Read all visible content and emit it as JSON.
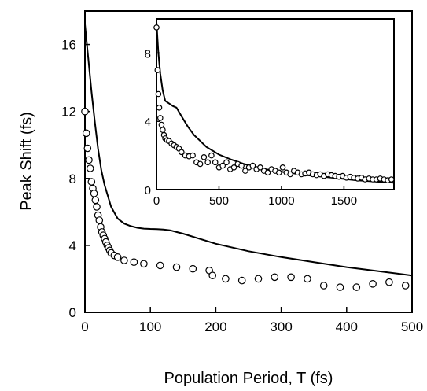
{
  "chart_data": [
    {
      "type": "line+scatter",
      "xlabel": "Population Period, T (fs)",
      "ylabel": "Peak Shift (fs)",
      "xlim": [
        0,
        500
      ],
      "ylim": [
        0,
        18
      ],
      "xticks": [
        "0",
        "100",
        "200",
        "300",
        "400",
        "500"
      ],
      "yticks": [
        "0",
        "4",
        "8",
        "12",
        "16"
      ],
      "grid": false,
      "series": [
        {
          "style": "line",
          "x": [
            0,
            5,
            10,
            15,
            20,
            25,
            30,
            40,
            50,
            60,
            70,
            80,
            90,
            100,
            110,
            120,
            130,
            140,
            150,
            175,
            200,
            250,
            300,
            350,
            400,
            450,
            500
          ],
          "y": [
            17.2,
            15.2,
            13.2,
            11.4,
            9.8,
            8.5,
            7.6,
            6.3,
            5.6,
            5.3,
            5.15,
            5.05,
            5.0,
            4.98,
            4.97,
            4.95,
            4.9,
            4.8,
            4.7,
            4.4,
            4.1,
            3.65,
            3.3,
            3.0,
            2.7,
            2.45,
            2.2
          ]
        },
        {
          "style": "markers",
          "x": [
            0,
            2,
            4,
            6,
            8,
            10,
            12,
            14,
            16,
            18,
            20,
            22,
            24,
            26,
            28,
            30,
            32,
            34,
            36,
            38,
            40,
            45,
            50,
            60,
            75,
            90,
            115,
            140,
            165,
            190,
            195,
            215,
            240,
            265,
            290,
            315,
            340,
            365,
            390,
            415,
            440,
            465,
            490
          ],
          "y": [
            12.0,
            10.7,
            9.8,
            9.1,
            8.6,
            7.8,
            7.4,
            7.1,
            6.7,
            6.3,
            5.8,
            5.5,
            5.1,
            4.8,
            4.6,
            4.4,
            4.2,
            4.0,
            3.85,
            3.7,
            3.55,
            3.4,
            3.3,
            3.1,
            3.0,
            2.9,
            2.8,
            2.7,
            2.6,
            2.5,
            2.2,
            2.0,
            1.9,
            2.0,
            2.1,
            2.1,
            2.0,
            1.6,
            1.5,
            1.5,
            1.7,
            1.8,
            1.6
          ]
        }
      ]
    },
    {
      "type": "line+scatter",
      "inset": true,
      "xlim": [
        0,
        1900
      ],
      "ylim": [
        0,
        10
      ],
      "xticks": [
        "0",
        "500",
        "1000",
        "1500"
      ],
      "yticks": [
        "0",
        "4",
        "8"
      ],
      "series": [
        {
          "style": "line",
          "x": [
            0,
            15,
            30,
            50,
            70,
            100,
            130,
            160,
            200,
            250,
            300,
            400,
            500,
            600,
            700,
            800,
            900,
            1000,
            1200,
            1400,
            1600,
            1800,
            1900
          ],
          "y": [
            9.8,
            8.0,
            6.8,
            5.8,
            5.2,
            5.05,
            4.9,
            4.8,
            4.3,
            3.7,
            3.2,
            2.5,
            2.05,
            1.75,
            1.5,
            1.3,
            1.15,
            1.05,
            0.85,
            0.7,
            0.55,
            0.45,
            0.4
          ]
        },
        {
          "style": "markers",
          "x": [
            0,
            8,
            15,
            22,
            30,
            40,
            50,
            60,
            70,
            85,
            100,
            120,
            140,
            160,
            180,
            200,
            230,
            260,
            290,
            320,
            350,
            380,
            410,
            440,
            470,
            500,
            530,
            560,
            590,
            620,
            650,
            680,
            710,
            740,
            770,
            800,
            830,
            860,
            890,
            920,
            950,
            980,
            1010,
            1040,
            1070,
            1100,
            1130,
            1160,
            1190,
            1220,
            1250,
            1280,
            1310,
            1340,
            1370,
            1400,
            1430,
            1460,
            1490,
            1520,
            1550,
            1580,
            1610,
            1640,
            1670,
            1700,
            1730,
            1760,
            1790,
            1820,
            1850,
            1880
          ],
          "y": [
            9.5,
            7.0,
            5.6,
            4.8,
            4.2,
            3.8,
            3.5,
            3.2,
            3.0,
            2.9,
            2.85,
            2.7,
            2.6,
            2.5,
            2.4,
            2.2,
            2.0,
            1.95,
            2.0,
            1.6,
            1.5,
            1.9,
            1.6,
            2.0,
            1.6,
            1.3,
            1.4,
            1.6,
            1.2,
            1.3,
            1.5,
            1.4,
            1.1,
            1.3,
            1.4,
            1.2,
            1.3,
            1.1,
            1.0,
            1.2,
            1.1,
            1.0,
            1.3,
            1.0,
            0.9,
            1.1,
            1.0,
            0.9,
            0.95,
            1.0,
            0.9,
            0.85,
            0.9,
            0.8,
            0.9,
            0.85,
            0.8,
            0.75,
            0.8,
            0.7,
            0.75,
            0.7,
            0.65,
            0.7,
            0.6,
            0.65,
            0.6,
            0.6,
            0.65,
            0.6,
            0.55,
            0.6
          ]
        }
      ]
    }
  ]
}
